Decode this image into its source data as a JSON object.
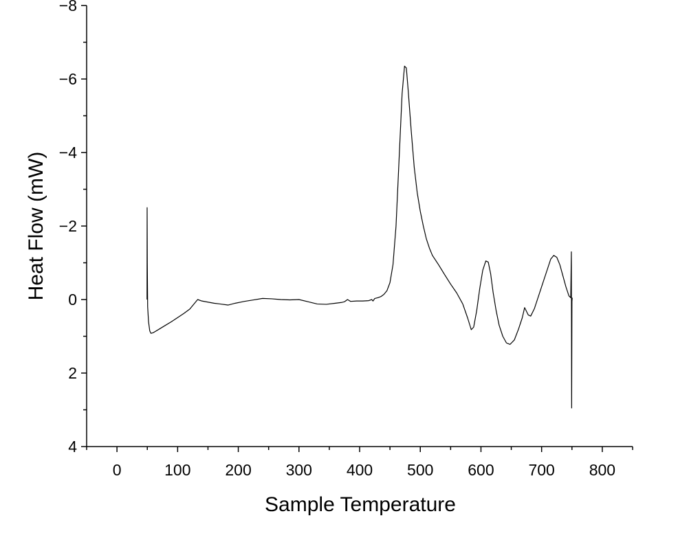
{
  "chart_data": {
    "type": "line",
    "title": "",
    "xlabel": "Sample Temperature",
    "ylabel": "Heat Flow (mW)",
    "xlim": [
      -50,
      850
    ],
    "ylim": [
      4,
      -8
    ],
    "y_inverted": true,
    "grid": false,
    "legend": "none",
    "xticks": [
      {
        "value": 0,
        "label": "0"
      },
      {
        "value": 100,
        "label": "100"
      },
      {
        "value": 200,
        "label": "200"
      },
      {
        "value": 300,
        "label": "300"
      },
      {
        "value": 400,
        "label": "400"
      },
      {
        "value": 500,
        "label": "500"
      },
      {
        "value": 600,
        "label": "600"
      },
      {
        "value": 700,
        "label": "700"
      },
      {
        "value": 800,
        "label": "800"
      }
    ],
    "xminor_ticks": [
      -50,
      50,
      150,
      250,
      350,
      450,
      550,
      650,
      750,
      850
    ],
    "yticks": [
      {
        "value": -8,
        "label": "−8"
      },
      {
        "value": -6,
        "label": "−6"
      },
      {
        "value": -4,
        "label": "−4"
      },
      {
        "value": -2,
        "label": "−2"
      },
      {
        "value": 0,
        "label": "0"
      },
      {
        "value": 2,
        "label": "2"
      },
      {
        "value": 4,
        "label": "4"
      }
    ],
    "yminor_ticks": [
      -7,
      -5,
      -3,
      -1,
      1,
      3
    ],
    "series": [
      {
        "color": "#000000",
        "points": [
          [
            49.5,
            0.0
          ],
          [
            49.7,
            -2.5
          ],
          [
            50.0,
            -1.0
          ],
          [
            50.6,
            0.2
          ],
          [
            52,
            0.6
          ],
          [
            54,
            0.85
          ],
          [
            56,
            0.92
          ],
          [
            60,
            0.9
          ],
          [
            70,
            0.8
          ],
          [
            80,
            0.7
          ],
          [
            90,
            0.6
          ],
          [
            100,
            0.49
          ],
          [
            110,
            0.38
          ],
          [
            120,
            0.26
          ],
          [
            133,
            0.0
          ],
          [
            140,
            0.04
          ],
          [
            150,
            0.07
          ],
          [
            160,
            0.1
          ],
          [
            170,
            0.12
          ],
          [
            183,
            0.15
          ],
          [
            195,
            0.1
          ],
          [
            210,
            0.05
          ],
          [
            225,
            0.01
          ],
          [
            240,
            -0.03
          ],
          [
            255,
            -0.02
          ],
          [
            270,
            0.0
          ],
          [
            285,
            0.01
          ],
          [
            300,
            0.0
          ],
          [
            315,
            0.06
          ],
          [
            330,
            0.12
          ],
          [
            345,
            0.13
          ],
          [
            360,
            0.1
          ],
          [
            370,
            0.08
          ],
          [
            375,
            0.06
          ],
          [
            380,
            0.0
          ],
          [
            385,
            0.05
          ],
          [
            395,
            0.04
          ],
          [
            405,
            0.04
          ],
          [
            415,
            0.03
          ],
          [
            420,
            0.0
          ],
          [
            422,
            0.04
          ],
          [
            425,
            -0.03
          ],
          [
            430,
            -0.05
          ],
          [
            435,
            -0.08
          ],
          [
            440,
            -0.14
          ],
          [
            445,
            -0.24
          ],
          [
            450,
            -0.46
          ],
          [
            455,
            -0.95
          ],
          [
            460,
            -2.0
          ],
          [
            465,
            -3.8
          ],
          [
            470,
            -5.6
          ],
          [
            474,
            -6.35
          ],
          [
            477,
            -6.3
          ],
          [
            480,
            -5.7
          ],
          [
            485,
            -4.6
          ],
          [
            490,
            -3.6
          ],
          [
            495,
            -2.9
          ],
          [
            500,
            -2.4
          ],
          [
            505,
            -2.0
          ],
          [
            510,
            -1.65
          ],
          [
            515,
            -1.4
          ],
          [
            520,
            -1.2
          ],
          [
            530,
            -0.95
          ],
          [
            540,
            -0.68
          ],
          [
            550,
            -0.42
          ],
          [
            560,
            -0.18
          ],
          [
            570,
            0.12
          ],
          [
            578,
            0.5
          ],
          [
            584,
            0.82
          ],
          [
            588,
            0.75
          ],
          [
            593,
            0.3
          ],
          [
            598,
            -0.3
          ],
          [
            603,
            -0.8
          ],
          [
            608,
            -1.05
          ],
          [
            612,
            -1.02
          ],
          [
            616,
            -0.7
          ],
          [
            620,
            -0.2
          ],
          [
            625,
            0.3
          ],
          [
            630,
            0.7
          ],
          [
            636,
            1.0
          ],
          [
            642,
            1.18
          ],
          [
            648,
            1.22
          ],
          [
            655,
            1.1
          ],
          [
            662,
            0.8
          ],
          [
            668,
            0.5
          ],
          [
            672,
            0.22
          ],
          [
            675,
            0.32
          ],
          [
            678,
            0.42
          ],
          [
            682,
            0.45
          ],
          [
            688,
            0.25
          ],
          [
            695,
            -0.1
          ],
          [
            702,
            -0.45
          ],
          [
            710,
            -0.85
          ],
          [
            715,
            -1.1
          ],
          [
            720,
            -1.2
          ],
          [
            725,
            -1.15
          ],
          [
            730,
            -0.95
          ],
          [
            735,
            -0.65
          ],
          [
            740,
            -0.35
          ],
          [
            745,
            -0.1
          ],
          [
            748,
            -0.05
          ],
          [
            749,
            -1.3
          ],
          [
            749.5,
            2.95
          ],
          [
            750,
            0.05
          ],
          [
            750.5,
            -0.05
          ]
        ]
      }
    ]
  }
}
